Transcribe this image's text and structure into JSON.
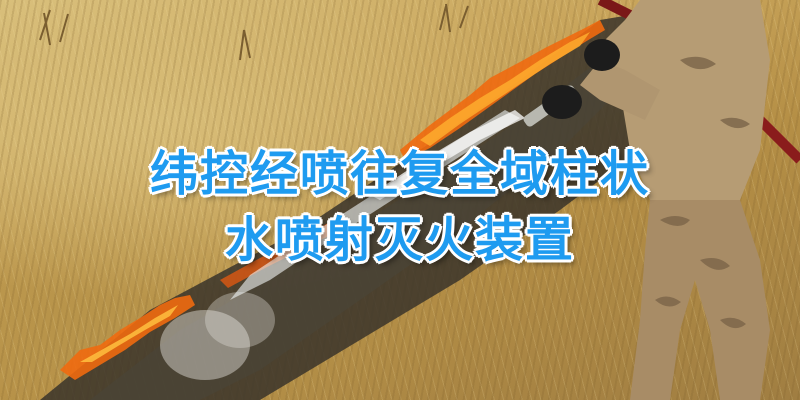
{
  "headline": {
    "line1": "纬控经喷往复全域柱状",
    "line2": "水喷射灭火装置"
  },
  "colors": {
    "headline_text": "#1e9bf0",
    "headline_outline": "#ffffff",
    "fire": "#f06a10",
    "grass": "#c8a45a",
    "burnt_ground": "#2e2a22"
  }
}
